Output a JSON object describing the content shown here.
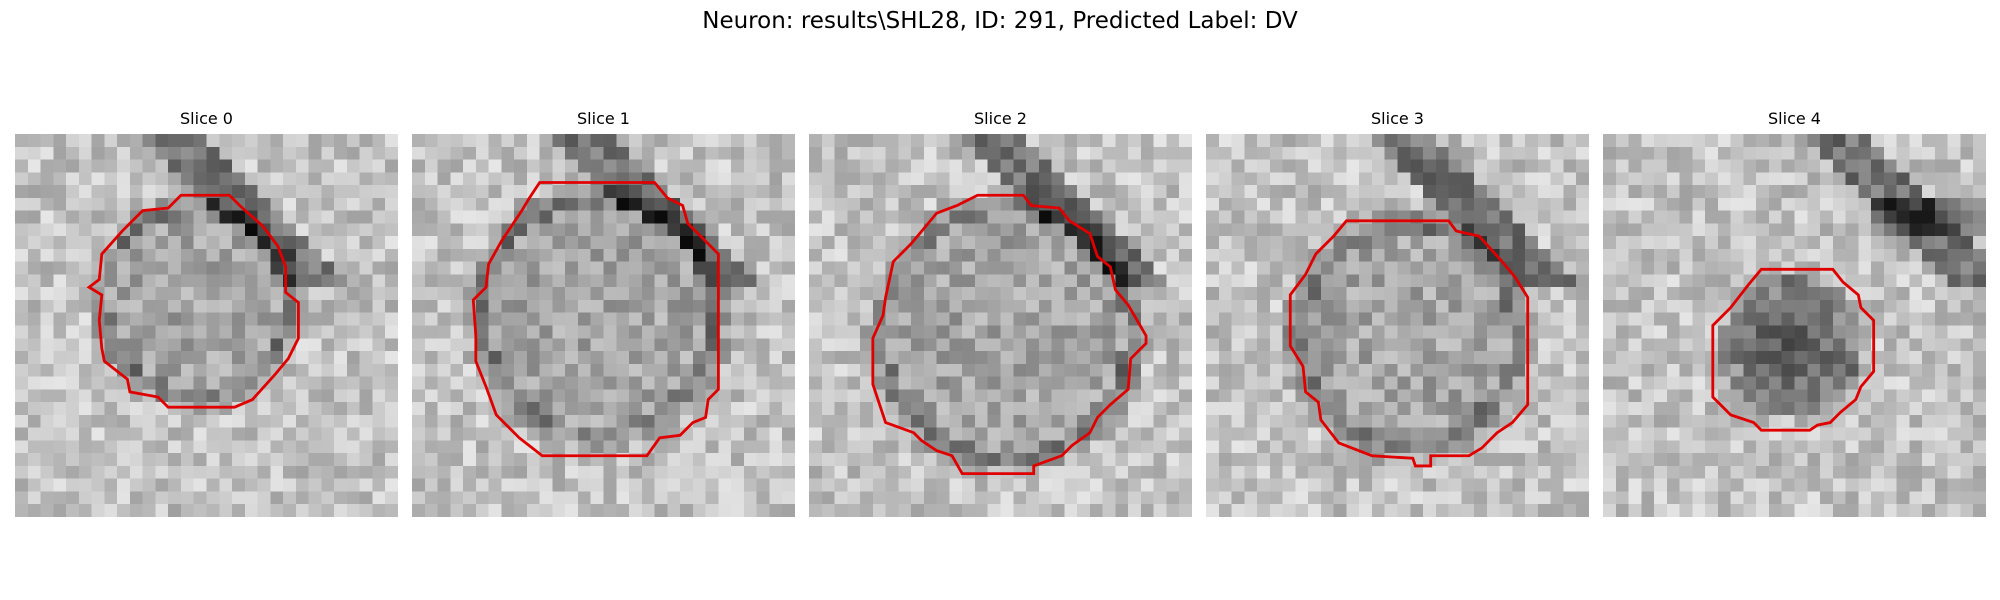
{
  "figure": {
    "title": "Neuron: results\\SHL28, ID: 291, Predicted Label: DV"
  },
  "colors": {
    "contour": "#e00000",
    "background": "#ffffff"
  },
  "panels": [
    {
      "title": "Slice 0",
      "image": "grayscale-patch",
      "seed": 11
    },
    {
      "title": "Slice 1",
      "image": "grayscale-patch",
      "seed": 23
    },
    {
      "title": "Slice 2",
      "image": "grayscale-patch",
      "seed": 37
    },
    {
      "title": "Slice 3",
      "image": "grayscale-patch",
      "seed": 41
    },
    {
      "title": "Slice 4",
      "image": "grayscale-patch",
      "seed": 59
    }
  ]
}
